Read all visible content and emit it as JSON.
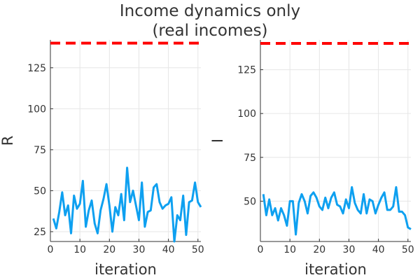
{
  "chart_data": {
    "title": "Income dynamics only",
    "subtitle": "(real incomes)",
    "panels": [
      {
        "type": "line",
        "xlabel": "iteration",
        "ylabel": "R",
        "xlim": [
          0,
          51
        ],
        "ylim": [
          19,
          142
        ],
        "xticks": [
          0,
          10,
          20,
          30,
          40,
          50
        ],
        "yticks": [
          25,
          50,
          75,
          100,
          125
        ],
        "grid": true,
        "series": [
          {
            "color": "#0ea0f0",
            "x": [
              1,
              2,
              3,
              4,
              5,
              6,
              7,
              8,
              9,
              10,
              11,
              12,
              13,
              14,
              15,
              16,
              17,
              18,
              19,
              20,
              21,
              22,
              23,
              24,
              25,
              26,
              27,
              28,
              29,
              30,
              31,
              32,
              33,
              34,
              35,
              36,
              37,
              38,
              39,
              40,
              41,
              42,
              43,
              44,
              45,
              46,
              47,
              48,
              49,
              50,
              51
            ],
            "y": [
              33,
              27,
              37,
              49,
              35,
              41,
              24,
              47,
              39,
              42,
              56,
              28,
              38,
              44,
              30,
              24,
              38,
              45,
              54,
              41,
              25,
              40,
              35,
              48,
              32,
              64,
              43,
              50,
              41,
              32,
              55,
              28,
              37,
              38,
              52,
              54,
              43,
              39,
              41,
              42,
              46,
              19,
              35,
              32,
              47,
              23,
              43,
              44,
              55,
              43,
              40
            ]
          },
          {
            "color": "#ff0000",
            "style": "dashed",
            "x": [
              0,
              51
            ],
            "y": [
              140,
              140
            ]
          }
        ]
      },
      {
        "type": "line",
        "xlabel": "iteration",
        "ylabel": "I",
        "xlim": [
          0,
          51
        ],
        "ylim": [
          27,
          142
        ],
        "xticks": [
          0,
          10,
          20,
          30,
          40,
          50
        ],
        "yticks": [
          50,
          75,
          100,
          125
        ],
        "grid": true,
        "series": [
          {
            "color": "#0ea0f0",
            "x": [
              1,
              2,
              3,
              4,
              5,
              6,
              7,
              8,
              9,
              10,
              11,
              12,
              13,
              14,
              15,
              16,
              17,
              18,
              19,
              20,
              21,
              22,
              23,
              24,
              25,
              26,
              27,
              28,
              29,
              30,
              31,
              32,
              33,
              34,
              35,
              36,
              37,
              38,
              39,
              40,
              41,
              42,
              43,
              44,
              45,
              46,
              47,
              48,
              49,
              50,
              51
            ],
            "y": [
              54,
              42,
              51,
              42,
              46,
              39,
              46,
              42,
              36,
              50,
              50,
              31,
              49,
              54,
              50,
              43,
              53,
              55,
              52,
              47,
              45,
              52,
              46,
              52,
              55,
              48,
              47,
              43,
              51,
              46,
              58,
              49,
              45,
              43,
              54,
              43,
              51,
              50,
              43,
              48,
              52,
              55,
              45,
              45,
              47,
              58,
              44,
              44,
              42,
              35,
              34
            ]
          },
          {
            "color": "#ff0000",
            "style": "dashed",
            "x": [
              0,
              51
            ],
            "y": [
              140,
              140
            ]
          }
        ]
      }
    ]
  }
}
